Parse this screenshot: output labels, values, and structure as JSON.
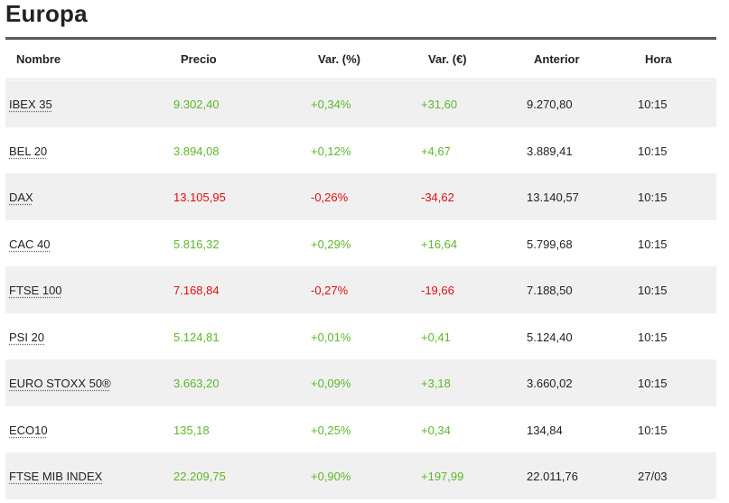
{
  "page": {
    "title": "Europa"
  },
  "colors": {
    "positive": "#5cb82a",
    "negative": "#e30c0c",
    "row_alt_bg": "#f0f0f0",
    "rule": "#5a5a5a"
  },
  "table": {
    "headers": [
      "Nombre",
      "Precio",
      "Var. (%)",
      "Var. (€)",
      "Anterior",
      "Hora"
    ],
    "rows": [
      {
        "name": "IBEX 35",
        "price": "9.302,40",
        "var_pct": "+0,34%",
        "var_eur": "+31,60",
        "previous": "9.270,80",
        "time": "10:15",
        "trend": "pos"
      },
      {
        "name": "BEL 20",
        "price": "3.894,08",
        "var_pct": "+0,12%",
        "var_eur": "+4,67",
        "previous": "3.889,41",
        "time": "10:15",
        "trend": "pos"
      },
      {
        "name": "DAX",
        "price": "13.105,95",
        "var_pct": "-0,26%",
        "var_eur": "-34,62",
        "previous": "13.140,57",
        "time": "10:15",
        "trend": "neg"
      },
      {
        "name": "CAC 40",
        "price": "5.816,32",
        "var_pct": "+0,29%",
        "var_eur": "+16,64",
        "previous": "5.799,68",
        "time": "10:15",
        "trend": "pos"
      },
      {
        "name": "FTSE 100",
        "price": "7.168,84",
        "var_pct": "-0,27%",
        "var_eur": "-19,66",
        "previous": "7.188,50",
        "time": "10:15",
        "trend": "neg"
      },
      {
        "name": "PSI 20",
        "price": "5.124,81",
        "var_pct": "+0,01%",
        "var_eur": "+0,41",
        "previous": "5.124,40",
        "time": "10:15",
        "trend": "pos"
      },
      {
        "name": "EURO STOXX 50®",
        "price": "3.663,20",
        "var_pct": "+0,09%",
        "var_eur": "+3,18",
        "previous": "3.660,02",
        "time": "10:15",
        "trend": "pos"
      },
      {
        "name": "ECO10",
        "price": "135,18",
        "var_pct": "+0,25%",
        "var_eur": "+0,34",
        "previous": "134,84",
        "time": "10:15",
        "trend": "pos"
      },
      {
        "name": "FTSE MIB INDEX",
        "price": "22.209,75",
        "var_pct": "+0,90%",
        "var_eur": "+197,99",
        "previous": "22.011,76",
        "time": "27/03",
        "trend": "pos"
      }
    ]
  }
}
